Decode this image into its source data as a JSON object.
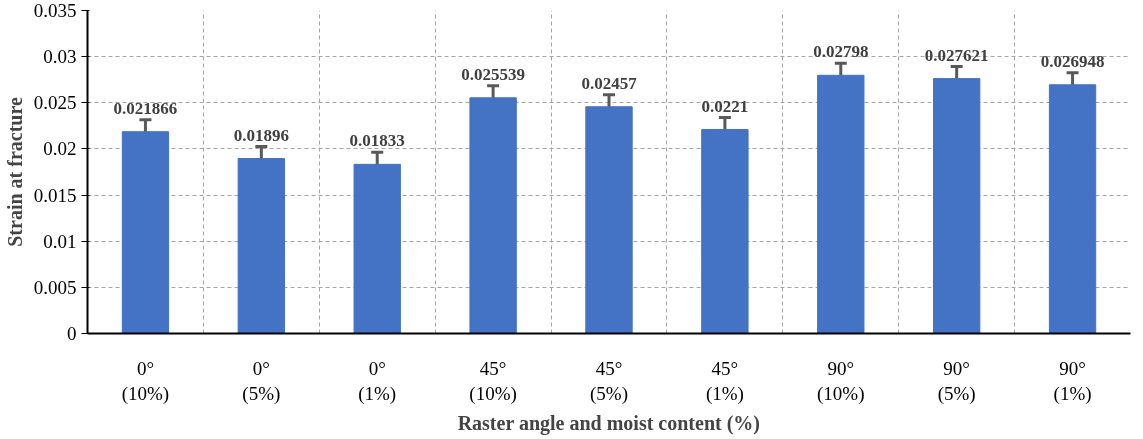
{
  "chart_data": {
    "type": "bar",
    "xlabel": "Raster angle and moist content (%)",
    "ylabel": "Strain at fracture",
    "categories": [
      "0°\n(10%)",
      "0°\n(5%)",
      "0°\n(1%)",
      "45°\n(10%)",
      "45°\n(5%)",
      "45°\n(1%)",
      "90°\n(10%)",
      "90°\n(5%)",
      "90°\n(1%)"
    ],
    "values": [
      0.021866,
      0.01896,
      0.01833,
      0.025539,
      0.02457,
      0.0221,
      0.02798,
      0.027621,
      0.026948
    ],
    "errors": [
      0.0013,
      0.0013,
      0.0013,
      0.0013,
      0.0013,
      0.0013,
      0.0013,
      0.0013,
      0.0013
    ],
    "color": "#4472c4",
    "ylim": [
      0,
      0.035
    ],
    "yticks": [
      0,
      0.005,
      0.01,
      0.015,
      0.02,
      0.025,
      0.03,
      0.035
    ],
    "grid": true,
    "data_labels": true
  }
}
